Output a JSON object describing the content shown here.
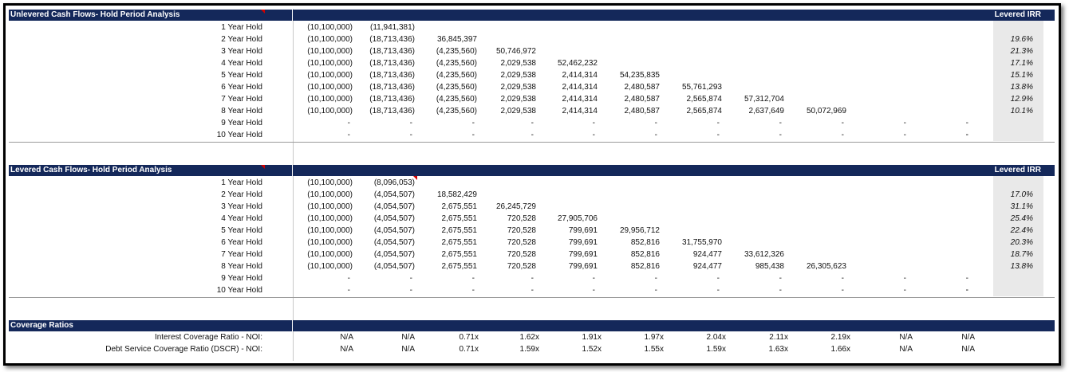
{
  "unlevered": {
    "title": "Unlevered Cash Flows- Hold Period Analysis",
    "irr_header": "Levered IRR",
    "rows": [
      {
        "label": "1 Year Hold",
        "cells": [
          "(10,100,000)",
          "(11,941,381)",
          "",
          "",
          "",
          "",
          "",
          "",
          "",
          "",
          "",
          ""
        ],
        "irr": ""
      },
      {
        "label": "2 Year Hold",
        "cells": [
          "(10,100,000)",
          "(18,713,436)",
          "36,845,397",
          "",
          "",
          "",
          "",
          "",
          "",
          "",
          "",
          ""
        ],
        "irr": "19.6%"
      },
      {
        "label": "3 Year Hold",
        "cells": [
          "(10,100,000)",
          "(18,713,436)",
          "(4,235,560)",
          "50,746,972",
          "",
          "",
          "",
          "",
          "",
          "",
          "",
          ""
        ],
        "irr": "21.3%"
      },
      {
        "label": "4 Year Hold",
        "cells": [
          "(10,100,000)",
          "(18,713,436)",
          "(4,235,560)",
          "2,029,538",
          "52,462,232",
          "",
          "",
          "",
          "",
          "",
          "",
          ""
        ],
        "irr": "17.1%"
      },
      {
        "label": "5 Year Hold",
        "cells": [
          "(10,100,000)",
          "(18,713,436)",
          "(4,235,560)",
          "2,029,538",
          "2,414,314",
          "54,235,835",
          "",
          "",
          "",
          "",
          "",
          ""
        ],
        "irr": "15.1%"
      },
      {
        "label": "6 Year Hold",
        "cells": [
          "(10,100,000)",
          "(18,713,436)",
          "(4,235,560)",
          "2,029,538",
          "2,414,314",
          "2,480,587",
          "55,761,293",
          "",
          "",
          "",
          "",
          ""
        ],
        "irr": "13.8%"
      },
      {
        "label": "7 Year Hold",
        "cells": [
          "(10,100,000)",
          "(18,713,436)",
          "(4,235,560)",
          "2,029,538",
          "2,414,314",
          "2,480,587",
          "2,565,874",
          "57,312,704",
          "",
          "",
          "",
          ""
        ],
        "irr": "12.9%"
      },
      {
        "label": "8 Year Hold",
        "cells": [
          "(10,100,000)",
          "(18,713,436)",
          "(4,235,560)",
          "2,029,538",
          "2,414,314",
          "2,480,587",
          "2,565,874",
          "2,637,649",
          "50,072,969",
          "",
          "",
          ""
        ],
        "irr": "10.1%"
      },
      {
        "label": "9 Year Hold",
        "cells": [
          "-",
          "-",
          "-",
          "-",
          "-",
          "-",
          "-",
          "-",
          "-",
          "-",
          "-",
          ""
        ],
        "irr": ""
      },
      {
        "label": "10 Year Hold",
        "cells": [
          "-",
          "-",
          "-",
          "-",
          "-",
          "-",
          "-",
          "-",
          "-",
          "-",
          "-",
          "-"
        ],
        "irr": ""
      }
    ]
  },
  "levered": {
    "title": "Levered Cash Flows- Hold Period Analysis",
    "irr_header": "Levered IRR",
    "rows": [
      {
        "label": "1 Year Hold",
        "cells": [
          "(10,100,000)",
          "(8,096,053)",
          "",
          "",
          "",
          "",
          "",
          "",
          "",
          "",
          "",
          ""
        ],
        "irr": ""
      },
      {
        "label": "2 Year Hold",
        "cells": [
          "(10,100,000)",
          "(4,054,507)",
          "18,582,429",
          "",
          "",
          "",
          "",
          "",
          "",
          "",
          "",
          ""
        ],
        "irr": "17.0%"
      },
      {
        "label": "3 Year Hold",
        "cells": [
          "(10,100,000)",
          "(4,054,507)",
          "2,675,551",
          "26,245,729",
          "",
          "",
          "",
          "",
          "",
          "",
          "",
          ""
        ],
        "irr": "31.1%"
      },
      {
        "label": "4 Year Hold",
        "cells": [
          "(10,100,000)",
          "(4,054,507)",
          "2,675,551",
          "720,528",
          "27,905,706",
          "",
          "",
          "",
          "",
          "",
          "",
          ""
        ],
        "irr": "25.4%"
      },
      {
        "label": "5 Year Hold",
        "cells": [
          "(10,100,000)",
          "(4,054,507)",
          "2,675,551",
          "720,528",
          "799,691",
          "29,956,712",
          "",
          "",
          "",
          "",
          "",
          ""
        ],
        "irr": "22.4%"
      },
      {
        "label": "6 Year Hold",
        "cells": [
          "(10,100,000)",
          "(4,054,507)",
          "2,675,551",
          "720,528",
          "799,691",
          "852,816",
          "31,755,970",
          "",
          "",
          "",
          "",
          ""
        ],
        "irr": "20.3%"
      },
      {
        "label": "7 Year Hold",
        "cells": [
          "(10,100,000)",
          "(4,054,507)",
          "2,675,551",
          "720,528",
          "799,691",
          "852,816",
          "924,477",
          "33,612,326",
          "",
          "",
          "",
          ""
        ],
        "irr": "18.7%"
      },
      {
        "label": "8 Year Hold",
        "cells": [
          "(10,100,000)",
          "(4,054,507)",
          "2,675,551",
          "720,528",
          "799,691",
          "852,816",
          "924,477",
          "985,438",
          "26,305,623",
          "",
          "",
          ""
        ],
        "irr": "13.8%"
      },
      {
        "label": "9 Year Hold",
        "cells": [
          "-",
          "-",
          "-",
          "-",
          "-",
          "-",
          "-",
          "-",
          "-",
          "-",
          "-",
          ""
        ],
        "irr": ""
      },
      {
        "label": "10 Year Hold",
        "cells": [
          "-",
          "-",
          "-",
          "-",
          "-",
          "-",
          "-",
          "-",
          "-",
          "-",
          "-",
          "-"
        ],
        "irr": ""
      }
    ]
  },
  "coverage": {
    "title": "Coverage Ratios",
    "rows": [
      {
        "label": "Interest Coverage Ratio - NOI:",
        "cells": [
          "N/A",
          "N/A",
          "0.71x",
          "1.62x",
          "1.91x",
          "1.97x",
          "2.04x",
          "2.11x",
          "2.19x",
          "N/A",
          "N/A"
        ]
      },
      {
        "label": "Debt Service Coverage Ratio (DSCR) - NOI:",
        "cells": [
          "N/A",
          "N/A",
          "0.71x",
          "1.59x",
          "1.52x",
          "1.55x",
          "1.59x",
          "1.63x",
          "1.66x",
          "N/A",
          "N/A"
        ]
      }
    ]
  },
  "colors": {
    "header_bg": "#14285a",
    "irr_col_bg": "#e9e9e9",
    "flag": "#d00000"
  }
}
